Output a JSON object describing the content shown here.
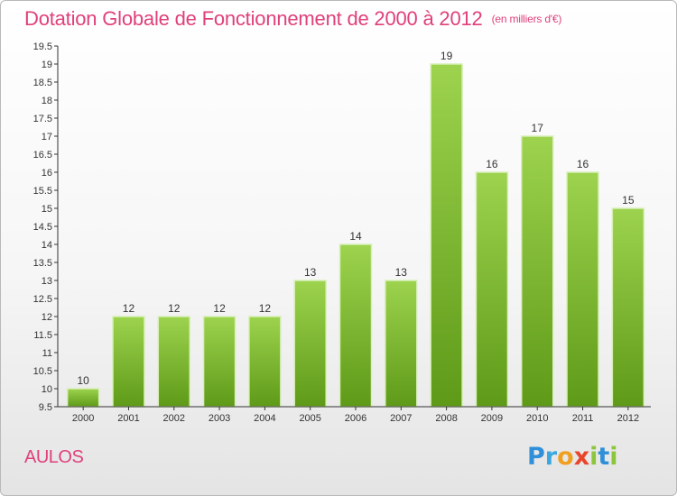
{
  "header": {
    "title": "Dotation Globale de Fonctionnement de 2000 à 2012",
    "unit_note": "(en milliers d'€)"
  },
  "footer": {
    "commune": "AULOS",
    "brand": "Proxiti"
  },
  "chart_data": {
    "type": "bar",
    "title": "Dotation Globale de Fonctionnement de 2000 à 2012",
    "subtitle": "(en milliers d'€)",
    "xlabel": "",
    "ylabel": "",
    "categories": [
      "2000",
      "2001",
      "2002",
      "2003",
      "2004",
      "2005",
      "2006",
      "2007",
      "2008",
      "2009",
      "2010",
      "2011",
      "2012"
    ],
    "values": [
      10,
      12,
      12,
      12,
      12,
      13,
      14,
      13,
      19,
      16,
      17,
      16,
      15
    ],
    "value_labels": [
      "10",
      "12",
      "12",
      "12",
      "12",
      "13",
      "14",
      "13",
      "19",
      "16",
      "17",
      "16",
      "15"
    ],
    "ylim": [
      9.5,
      19.5
    ],
    "yticks": [
      9.5,
      10,
      10.5,
      11,
      11.5,
      12,
      12.5,
      13,
      13.5,
      14,
      14.5,
      15,
      15.5,
      16,
      16.5,
      17,
      17.5,
      18,
      18.5,
      19,
      19.5
    ],
    "ytick_labels": [
      "9.5",
      "10",
      "10.5",
      "11",
      "11.5",
      "12",
      "12.5",
      "13",
      "13.5",
      "14",
      "14.5",
      "15",
      "15.5",
      "16",
      "16.5",
      "17",
      "17.5",
      "18",
      "18.5",
      "19",
      "19.5"
    ],
    "grid": false,
    "colors": {
      "bar_top": "#9dd34e",
      "bar_bottom": "#5e9a18",
      "bar_edge": "#d8efb8",
      "title": "#e0407a"
    }
  }
}
